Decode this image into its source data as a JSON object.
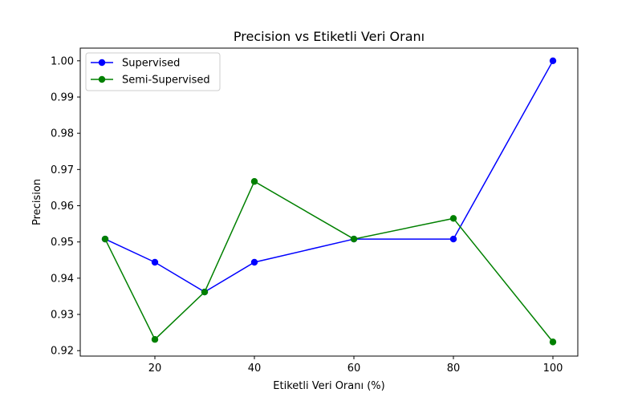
{
  "chart_data": {
    "type": "line",
    "title": "Precision vs Etiketli Veri Oranı",
    "xlabel": "Etiketli Veri Oranı (%)",
    "ylabel": "Precision",
    "xlim": [
      5,
      105
    ],
    "ylim": [
      0.9185,
      1.0035
    ],
    "x_ticks": [
      20,
      40,
      60,
      80,
      100
    ],
    "y_ticks": [
      0.92,
      0.93,
      0.94,
      0.95,
      0.96,
      0.97,
      0.98,
      0.99,
      1.0
    ],
    "y_tick_labels": [
      "0.92",
      "0.93",
      "0.94",
      "0.95",
      "0.96",
      "0.97",
      "0.98",
      "0.99",
      "1.00"
    ],
    "grid": false,
    "legend_position": "top-left",
    "x": [
      10,
      20,
      30,
      40,
      60,
      80,
      100
    ],
    "series": [
      {
        "name": "Supervised",
        "color": "#0000ff",
        "marker": "circle",
        "values": [
          0.9508,
          0.9444,
          0.9362,
          0.9444,
          0.9508,
          0.9508,
          1.0
        ]
      },
      {
        "name": "Semi-Supervised",
        "color": "#008000",
        "marker": "circle",
        "values": [
          0.9508,
          0.9231,
          0.9362,
          0.9667,
          0.9508,
          0.9565,
          0.9224
        ]
      }
    ]
  }
}
